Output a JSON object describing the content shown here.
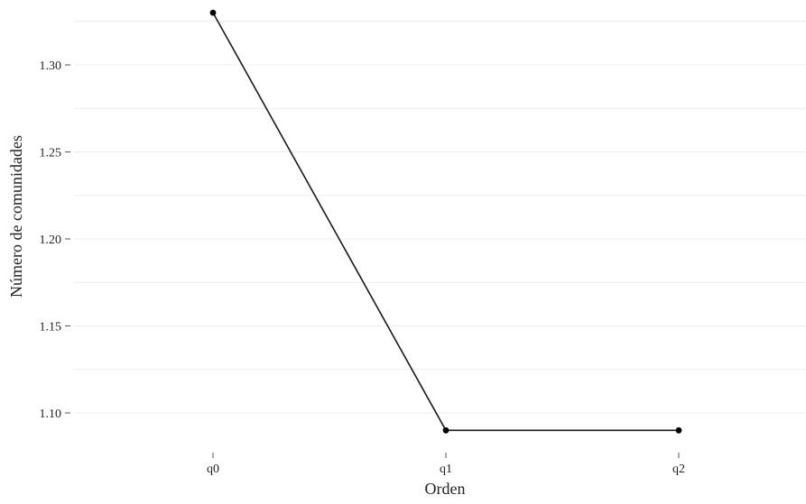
{
  "chart_data": {
    "type": "line",
    "title": "",
    "xlabel": "Orden",
    "ylabel": "Número de comunidades",
    "categories": [
      "q0",
      "q1",
      "q2"
    ],
    "series": [
      {
        "values": [
          1.33,
          1.09,
          1.09
        ]
      }
    ],
    "yticks": [
      1.1,
      1.15,
      1.2,
      1.25,
      1.3
    ],
    "ytick_labels": [
      "1.10",
      "1.15",
      "1.20",
      "1.25",
      "1.30"
    ],
    "ylim": [
      1.078,
      1.335
    ],
    "grid": true,
    "legend": "none",
    "colors": {
      "line": "#1a1a1a",
      "point": "#000000",
      "grid": "#ececec",
      "tick": "#555555"
    }
  }
}
